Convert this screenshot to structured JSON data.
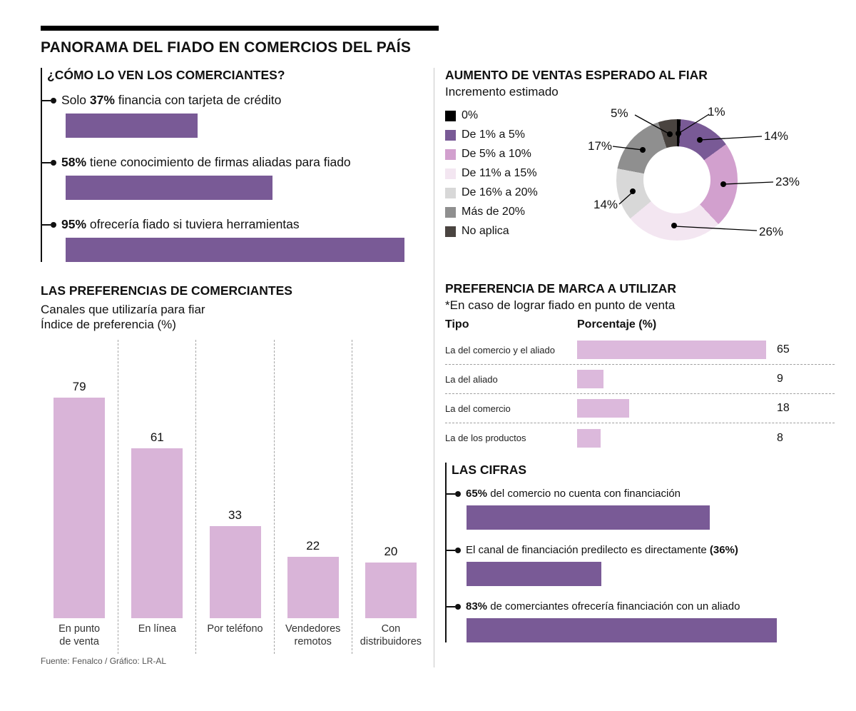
{
  "header": {
    "title": "PANORAMA DEL FIADO EN COMERCIOS DEL PAÍS"
  },
  "footer": {
    "source": "Fuente: Fenalco / Gráfico: LR-AL"
  },
  "chart_data": [
    {
      "type": "bar",
      "orientation": "horizontal",
      "title": "¿CÓMO LO VEN LOS COMERCIANTES?",
      "color": "#795a96",
      "xlim": [
        0,
        100
      ],
      "items": [
        {
          "pre": "Solo ",
          "bold": "37%",
          "post": " financia con tarjeta de crédito",
          "value": 37
        },
        {
          "pre": "",
          "bold": "58%",
          "post": " tiene conocimiento de firmas aliadas para fiado",
          "value": 58
        },
        {
          "pre": "",
          "bold": "95%",
          "post": " ofrecería fiado si tuviera herramientas",
          "value": 95
        }
      ]
    },
    {
      "type": "pie",
      "subtype": "donut",
      "title": "AUMENTO DE VENTAS ESPERADO AL FIAR",
      "subtitle": "Incremento estimado",
      "legend_position": "left",
      "segments": [
        {
          "label": "0%",
          "value": 1,
          "color": "#000000",
          "callout": "1%"
        },
        {
          "label": "De 1% a 5%",
          "value": 14,
          "color": "#795a96",
          "callout": "14%"
        },
        {
          "label": "De 5% a 10%",
          "value": 23,
          "color": "#d2a0ce",
          "callout": "23%"
        },
        {
          "label": "De 11% a 15%",
          "value": 26,
          "color": "#f3e6f1",
          "callout": "26%"
        },
        {
          "label": "De 16% a 20%",
          "value": 14,
          "color": "#d8d8d8",
          "callout": "14%"
        },
        {
          "label": "Más de 20%",
          "value": 17,
          "color": "#8f8f8f",
          "callout": "17%"
        },
        {
          "label": "No aplica",
          "value": 5,
          "color": "#4a4440",
          "callout": "5%"
        }
      ]
    },
    {
      "type": "bar",
      "orientation": "horizontal",
      "title": "PREFERENCIA DE MARCA A UTILIZAR",
      "subtitle": "*En caso de lograr fiado en punto de venta",
      "col_headers": [
        "Tipo",
        "Porcentaje (%)"
      ],
      "categories": [
        "La del comercio y el aliado",
        "La del aliado",
        "La del comercio",
        "La de los productos"
      ],
      "values": [
        65,
        9,
        18,
        8
      ],
      "color": "#dcb9dc",
      "xlim": [
        0,
        70
      ]
    },
    {
      "type": "bar",
      "orientation": "vertical",
      "title": "LAS PREFERENCIAS DE COMERCIANTES",
      "subtitle": "Canales que utilizaría para fiar",
      "ylabel": "Índice de preferencia (%)",
      "categories": [
        "En punto\nde venta",
        "En línea",
        "Por teléfono",
        "Vendedores\nremotos",
        "Con\ndistribuidores"
      ],
      "values": [
        79,
        61,
        33,
        22,
        20
      ],
      "color": "#d9b4d8",
      "ylim": [
        0,
        100
      ],
      "grid": "dashed-vertical-separators"
    },
    {
      "type": "bar",
      "orientation": "horizontal",
      "title": "LAS CIFRAS",
      "color": "#795a96",
      "xlim": [
        0,
        100
      ],
      "items": [
        {
          "pre": "",
          "bold": "65%",
          "post": " del comercio no cuenta con financiación",
          "value": 65
        },
        {
          "pre": "El canal de financiación predilecto es directamente ",
          "bold": "(36%)",
          "post": "",
          "value": 36
        },
        {
          "pre": "",
          "bold": "83%",
          "post": " de comerciantes ofrecería financiación con un aliado",
          "value": 83
        }
      ]
    }
  ]
}
